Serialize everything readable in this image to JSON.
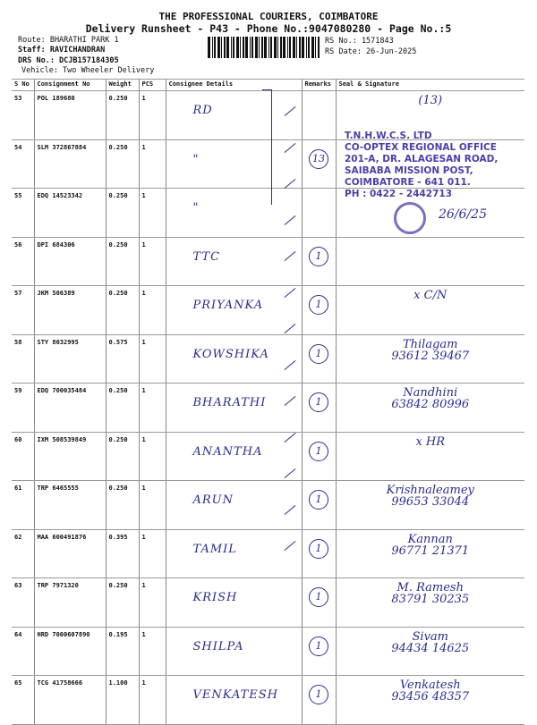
{
  "header": {
    "company": "THE PROFESSIONAL COURIERS, COIMBATORE",
    "subtitle": "Delivery Runsheet - P43 - Phone No.:9047080280 - Page No.:5",
    "route": "Route: BHARATHI PARK 1",
    "staff": "Staff: RAVICHANDRAN",
    "drs": "DRS No.: DCJB157184305",
    "vehicle": "Vehicle: Two Wheeler Delivery",
    "rs_no": "RS No.: 1571843",
    "rs_date": "RS Date: 26-Jun-2025"
  },
  "columns": [
    "S No",
    "Consignment No",
    "Weight",
    "PCS",
    "Consignee Details",
    "Remarks",
    "Seal & Signature"
  ],
  "rows": [
    {
      "sno": "53",
      "cn": "POL 189680",
      "wt": "0.250",
      "pcs": "1",
      "consignee": "RD",
      "remark": "",
      "sig": "(13)",
      "sig2": ""
    },
    {
      "sno": "54",
      "cn": "SLM 372867884",
      "wt": "0.250",
      "pcs": "1",
      "consignee": "\"",
      "remark": "13",
      "sig": "",
      "sig2": ""
    },
    {
      "sno": "55",
      "cn": "EDQ 14523342",
      "wt": "0.250",
      "pcs": "1",
      "consignee": "\"",
      "remark": "",
      "sig": "",
      "sig2": ""
    },
    {
      "sno": "56",
      "cn": "DPI 684306",
      "wt": "0.250",
      "pcs": "1",
      "consignee": "TTC",
      "remark": "1",
      "sig": "",
      "sig2": ""
    },
    {
      "sno": "57",
      "cn": "JKM 506389",
      "wt": "0.250",
      "pcs": "1",
      "consignee": "PRIYANKA",
      "remark": "1",
      "sig": "x  C/N",
      "sig2": ""
    },
    {
      "sno": "58",
      "cn": "STY 8032995",
      "wt": "0.575",
      "pcs": "1",
      "consignee": "KOWSHIKA",
      "remark": "1",
      "sig": "Thilagam",
      "sig2": "93612 39467"
    },
    {
      "sno": "59",
      "cn": "EDQ 700035484",
      "wt": "0.250",
      "pcs": "1",
      "consignee": "BHARATHI",
      "remark": "1",
      "sig": "Nandhini",
      "sig2": "63842 80996"
    },
    {
      "sno": "60",
      "cn": "IXM 508539849",
      "wt": "0.250",
      "pcs": "1",
      "consignee": "ANANTHA",
      "remark": "1",
      "sig": "x  HR",
      "sig2": ""
    },
    {
      "sno": "61",
      "cn": "TRP 6465555",
      "wt": "0.250",
      "pcs": "1",
      "consignee": "ARUN",
      "remark": "1",
      "sig": "Krishnaleamey",
      "sig2": "99653 33044"
    },
    {
      "sno": "62",
      "cn": "MAA 600491876",
      "wt": "0.395",
      "pcs": "1",
      "consignee": "TAMIL",
      "remark": "1",
      "sig": "Kannan",
      "sig2": "96771 21371"
    },
    {
      "sno": "63",
      "cn": "TRP 7971320",
      "wt": "0.250",
      "pcs": "1",
      "consignee": "KRISH",
      "remark": "1",
      "sig": "M. Ramesh",
      "sig2": "83791 30235"
    },
    {
      "sno": "64",
      "cn": "HRD 7000607890",
      "wt": "0.195",
      "pcs": "1",
      "consignee": "SHILPA",
      "remark": "1",
      "sig": "Sivam",
      "sig2": "94434 14625"
    },
    {
      "sno": "65",
      "cn": "TCG 41758666",
      "wt": "1.100",
      "pcs": "1",
      "consignee": "VENKATESH",
      "remark": "1",
      "sig": "Venkatesh",
      "sig2": "93456 48357"
    }
  ],
  "stamp": {
    "lines": [
      "T.N.H.W.C.S. LTD",
      "CO-OPTEX REGIONAL OFFICE",
      "201-A, DR. ALAGESAN ROAD,",
      "SAIBABA MISSION POST,",
      "COIMBATORE - 641 011.",
      "PH : 0422 - 2442713"
    ],
    "date_note": "26/6/25",
    "color": "#4a3fa8"
  },
  "ink_color": "#2a2d8c"
}
